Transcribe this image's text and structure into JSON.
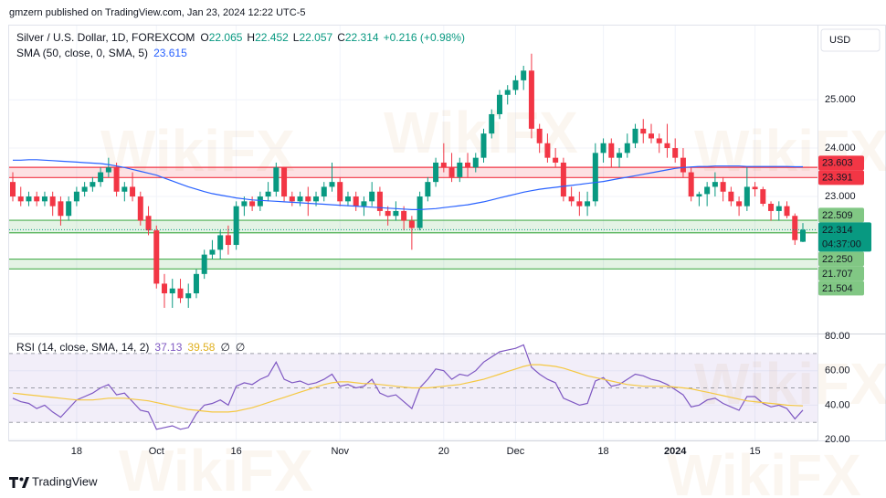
{
  "header": {
    "published": "gmzern published on TradingView.com, Jan 23, 2024 12:22 UTC-5",
    "currency": "USD",
    "brand": "TradingView",
    "watermark": "WikiFX"
  },
  "chart_data": [
    {
      "type": "candlestick",
      "title": "Silver / U.S. Dollar, 1D, FOREXCOM",
      "ohlc_labels": [
        "O",
        "H",
        "L",
        "C"
      ],
      "change": "+0.216 (+0.98%)",
      "countdown": "04:37:00",
      "up_color": "#089981",
      "down_color": "#f23645",
      "categories": [
        null,
        null,
        null,
        null,
        null,
        null,
        null,
        null,
        "18",
        null,
        null,
        null,
        null,
        null,
        null,
        null,
        null,
        null,
        "Oct",
        null,
        null,
        null,
        null,
        null,
        null,
        null,
        null,
        null,
        "16",
        null,
        null,
        null,
        null,
        null,
        null,
        null,
        null,
        null,
        null,
        null,
        null,
        "Nov",
        null,
        null,
        null,
        null,
        null,
        null,
        null,
        null,
        null,
        null,
        null,
        null,
        "20",
        null,
        null,
        null,
        null,
        null,
        null,
        null,
        null,
        "Dec",
        null,
        null,
        null,
        null,
        null,
        null,
        null,
        null,
        null,
        null,
        "18",
        null,
        null,
        null,
        null,
        null,
        null,
        null,
        null,
        "2024",
        null,
        null,
        null,
        null,
        null,
        null,
        null,
        null,
        null,
        "15",
        null,
        null,
        null,
        null,
        null,
        null
      ],
      "open": [
        23.3,
        23.0,
        22.9,
        23.0,
        22.9,
        23.0,
        22.9,
        22.6,
        22.9,
        23.1,
        23.2,
        23.3,
        23.5,
        23.6,
        23.1,
        23.2,
        23.0,
        22.6,
        22.3,
        21.2,
        21.0,
        21.1,
        20.9,
        21.0,
        21.4,
        21.8,
        21.9,
        22.2,
        22.0,
        22.8,
        22.9,
        22.8,
        23.0,
        23.1,
        23.6,
        23.0,
        22.9,
        23.0,
        22.9,
        23.0,
        23.2,
        23.3,
        22.9,
        23.0,
        22.8,
        22.9,
        23.1,
        22.7,
        22.6,
        22.7,
        22.5,
        22.35,
        23.0,
        23.3,
        23.7,
        23.6,
        23.4,
        23.7,
        23.6,
        23.8,
        24.3,
        24.7,
        25.1,
        25.2,
        25.4,
        25.6,
        24.4,
        24.1,
        23.8,
        23.7,
        23.0,
        22.9,
        22.8,
        22.9,
        23.9,
        24.1,
        23.8,
        23.9,
        24.1,
        24.4,
        24.3,
        24.2,
        24.1,
        24.0,
        23.8,
        23.5,
        23.0,
        23.05,
        23.2,
        23.3,
        23.1,
        22.9,
        22.8,
        23.2,
        23.15,
        22.85,
        22.7,
        22.8,
        22.6,
        22.065
      ],
      "high": [
        23.5,
        23.2,
        23.1,
        23.1,
        23.1,
        23.1,
        23.0,
        23.0,
        23.2,
        23.3,
        23.4,
        23.6,
        23.8,
        23.7,
        23.3,
        23.5,
        23.1,
        22.8,
        22.4,
        21.4,
        21.3,
        21.3,
        21.2,
        21.5,
        21.9,
        22.1,
        22.3,
        22.4,
        22.9,
        23.0,
        23.0,
        23.1,
        23.3,
        23.7,
        23.6,
        23.1,
        23.1,
        23.2,
        23.1,
        23.3,
        23.7,
        23.4,
        23.1,
        23.1,
        23.0,
        23.3,
        23.2,
        22.8,
        22.9,
        22.8,
        22.6,
        23.1,
        23.4,
        23.8,
        24.1,
        23.9,
        23.8,
        23.9,
        23.9,
        24.4,
        24.8,
        25.2,
        25.3,
        25.5,
        25.7,
        25.95,
        24.5,
        24.3,
        24.0,
        23.8,
        23.2,
        23.1,
        23.1,
        24.1,
        24.2,
        24.2,
        24.0,
        24.3,
        24.5,
        24.6,
        24.5,
        24.3,
        24.5,
        24.2,
        24.0,
        23.6,
        23.1,
        23.3,
        23.5,
        23.4,
        23.2,
        23.0,
        23.6,
        23.3,
        23.2,
        22.9,
        22.9,
        22.9,
        22.65,
        22.452
      ],
      "low": [
        22.9,
        22.8,
        22.8,
        22.8,
        22.8,
        22.6,
        22.4,
        22.5,
        22.8,
        23.0,
        23.1,
        23.2,
        23.4,
        23.0,
        22.9,
        22.9,
        22.4,
        22.2,
        21.1,
        20.7,
        20.7,
        20.8,
        20.7,
        20.9,
        21.3,
        21.7,
        21.7,
        21.8,
        21.9,
        22.6,
        22.7,
        22.7,
        22.9,
        23.0,
        22.9,
        22.8,
        22.8,
        22.6,
        22.8,
        22.9,
        23.1,
        22.8,
        22.8,
        22.7,
        22.6,
        22.8,
        22.6,
        22.4,
        22.5,
        22.3,
        21.9,
        22.3,
        22.9,
        23.2,
        23.5,
        23.3,
        23.3,
        23.4,
        23.5,
        23.7,
        24.2,
        24.6,
        24.9,
        25.1,
        25.2,
        24.2,
        23.9,
        23.7,
        23.6,
        22.9,
        22.8,
        22.6,
        22.6,
        22.8,
        23.7,
        23.6,
        23.6,
        23.8,
        24.0,
        24.1,
        24.1,
        23.9,
        23.8,
        23.7,
        23.4,
        22.9,
        22.8,
        22.8,
        23.0,
        22.9,
        22.8,
        22.6,
        22.7,
        23.0,
        22.8,
        22.5,
        22.5,
        22.55,
        22.0,
        22.057
      ],
      "close": [
        23.0,
        22.9,
        23.0,
        22.9,
        23.0,
        22.8,
        22.6,
        22.9,
        23.1,
        23.2,
        23.3,
        23.5,
        23.6,
        23.1,
        23.2,
        23.0,
        22.5,
        22.3,
        21.2,
        21.0,
        21.1,
        20.9,
        21.0,
        21.4,
        21.8,
        21.9,
        22.2,
        22.0,
        22.8,
        22.9,
        22.8,
        23.0,
        23.1,
        23.6,
        23.0,
        22.9,
        23.0,
        22.9,
        23.0,
        23.2,
        23.3,
        22.9,
        23.0,
        22.8,
        22.9,
        23.1,
        22.7,
        22.6,
        22.7,
        22.5,
        22.35,
        23.0,
        23.3,
        23.7,
        23.6,
        23.4,
        23.7,
        23.6,
        23.8,
        24.3,
        24.7,
        25.1,
        25.2,
        25.4,
        25.6,
        24.4,
        24.1,
        23.8,
        23.7,
        23.0,
        22.9,
        22.8,
        22.9,
        23.9,
        24.1,
        23.8,
        23.9,
        24.1,
        24.4,
        24.3,
        24.2,
        24.1,
        24.0,
        23.8,
        23.5,
        23.0,
        23.05,
        23.2,
        23.3,
        23.1,
        22.9,
        22.8,
        23.2,
        23.15,
        22.85,
        22.7,
        22.8,
        22.6,
        22.1,
        22.314
      ],
      "series": [
        {
          "name": "SMA (50, close, 0, SMA, 5)",
          "color": "#2962ff",
          "values": [
            23.75,
            23.75,
            23.76,
            23.76,
            23.75,
            23.74,
            23.73,
            23.72,
            23.71,
            23.7,
            23.69,
            23.68,
            23.66,
            23.63,
            23.6,
            23.56,
            23.52,
            23.48,
            23.44,
            23.38,
            23.32,
            23.26,
            23.2,
            23.15,
            23.1,
            23.06,
            23.03,
            23.0,
            22.97,
            22.95,
            22.93,
            22.92,
            22.91,
            22.9,
            22.89,
            22.88,
            22.87,
            22.86,
            22.85,
            22.84,
            22.83,
            22.82,
            22.81,
            22.8,
            22.79,
            22.78,
            22.77,
            22.76,
            22.75,
            22.74,
            22.73,
            22.73,
            22.74,
            22.75,
            22.77,
            22.79,
            22.81,
            22.83,
            22.86,
            22.89,
            22.93,
            22.97,
            23.01,
            23.05,
            23.09,
            23.12,
            23.15,
            23.17,
            23.19,
            23.21,
            23.23,
            23.25,
            23.27,
            23.29,
            23.31,
            23.34,
            23.37,
            23.4,
            23.43,
            23.46,
            23.49,
            23.52,
            23.55,
            23.58,
            23.6,
            23.61,
            23.62,
            23.62,
            23.63,
            23.63,
            23.63,
            23.63,
            23.62,
            23.62,
            23.62,
            23.62,
            23.62,
            23.62,
            23.615,
            23.615
          ]
        }
      ],
      "ylim": [
        20.17,
        26.53
      ],
      "yticks": [
        {
          "value": 25,
          "label": "25.000"
        },
        {
          "value": 24,
          "label": "24.000"
        },
        {
          "value": 23,
          "label": "23.000"
        }
      ],
      "grid": true,
      "zones": [
        {
          "color": "#f23645",
          "levels": [
            {
              "value": 23.603
            },
            {
              "value": 23.391
            }
          ]
        },
        {
          "color": "#4caf50",
          "levels": [
            {
              "value": 22.509
            },
            {
              "value": 22.25,
              "label": "22.250"
            }
          ]
        },
        {
          "color": "#4caf50",
          "levels": [
            {
              "value": 21.707
            },
            {
              "value": 21.504
            }
          ]
        }
      ]
    },
    {
      "type": "line",
      "series": [
        {
          "name": "RSI (14, close, SMA, 14, 2)",
          "color": "#7e57c2",
          "values": [
            44,
            42,
            41,
            38,
            40,
            36,
            33,
            38,
            43,
            45,
            47,
            50,
            52,
            46,
            47,
            42,
            37,
            36,
            26,
            27,
            28,
            26,
            27,
            35,
            40,
            41,
            43,
            40,
            51,
            53,
            52,
            55,
            57,
            65,
            55,
            53,
            54,
            52,
            53,
            55,
            58,
            51,
            52,
            50,
            51,
            55,
            47,
            45,
            46,
            42,
            38,
            50,
            55,
            61,
            60,
            55,
            58,
            57,
            60,
            65,
            68,
            71,
            72,
            73,
            75,
            62,
            58,
            55,
            53,
            44,
            42,
            40,
            41,
            54,
            56,
            51,
            52,
            55,
            58,
            57,
            55,
            54,
            52,
            49,
            46,
            39,
            40,
            43,
            44,
            41,
            39,
            37,
            45,
            45,
            41,
            39,
            40,
            38,
            32,
            37.13
          ]
        },
        {
          "color": "#f5c842",
          "values": [
            47,
            46.5,
            46,
            45.5,
            45,
            44.5,
            44,
            43.5,
            43,
            43,
            43,
            43.5,
            44,
            44,
            44,
            43.5,
            43,
            42.5,
            41.5,
            40.5,
            39.5,
            38.5,
            37.5,
            37,
            36.5,
            36,
            36,
            36,
            36.5,
            37.5,
            38.5,
            40,
            41.5,
            43,
            44.5,
            46,
            47.5,
            49,
            50.5,
            52,
            53,
            53.5,
            53.5,
            53,
            52.5,
            52.5,
            52,
            51.5,
            51,
            50.5,
            50,
            50,
            50,
            50.5,
            51,
            51.5,
            52,
            53,
            54,
            55,
            56.5,
            58,
            59.5,
            61,
            62.5,
            63.5,
            63.5,
            63,
            62.5,
            61.5,
            60,
            58.5,
            57,
            56,
            55,
            54,
            53,
            52,
            51.5,
            51,
            51,
            51,
            51,
            50.5,
            50,
            49.5,
            48.5,
            47.5,
            46.5,
            45.5,
            44.5,
            43.5,
            42.5,
            42,
            41.5,
            41,
            40.5,
            40,
            39.8,
            39.58
          ]
        }
      ],
      "extra_labels": [
        "∅",
        "∅"
      ],
      "ylim": [
        19.5,
        81.6
      ],
      "yticks": [
        {
          "value": 80,
          "label": "80.00"
        },
        {
          "value": 60,
          "label": "60.00"
        },
        {
          "value": 40,
          "label": "40.00"
        },
        {
          "value": 20,
          "label": "20.00"
        }
      ],
      "bands": [
        70,
        30
      ],
      "midline": 50
    }
  ]
}
